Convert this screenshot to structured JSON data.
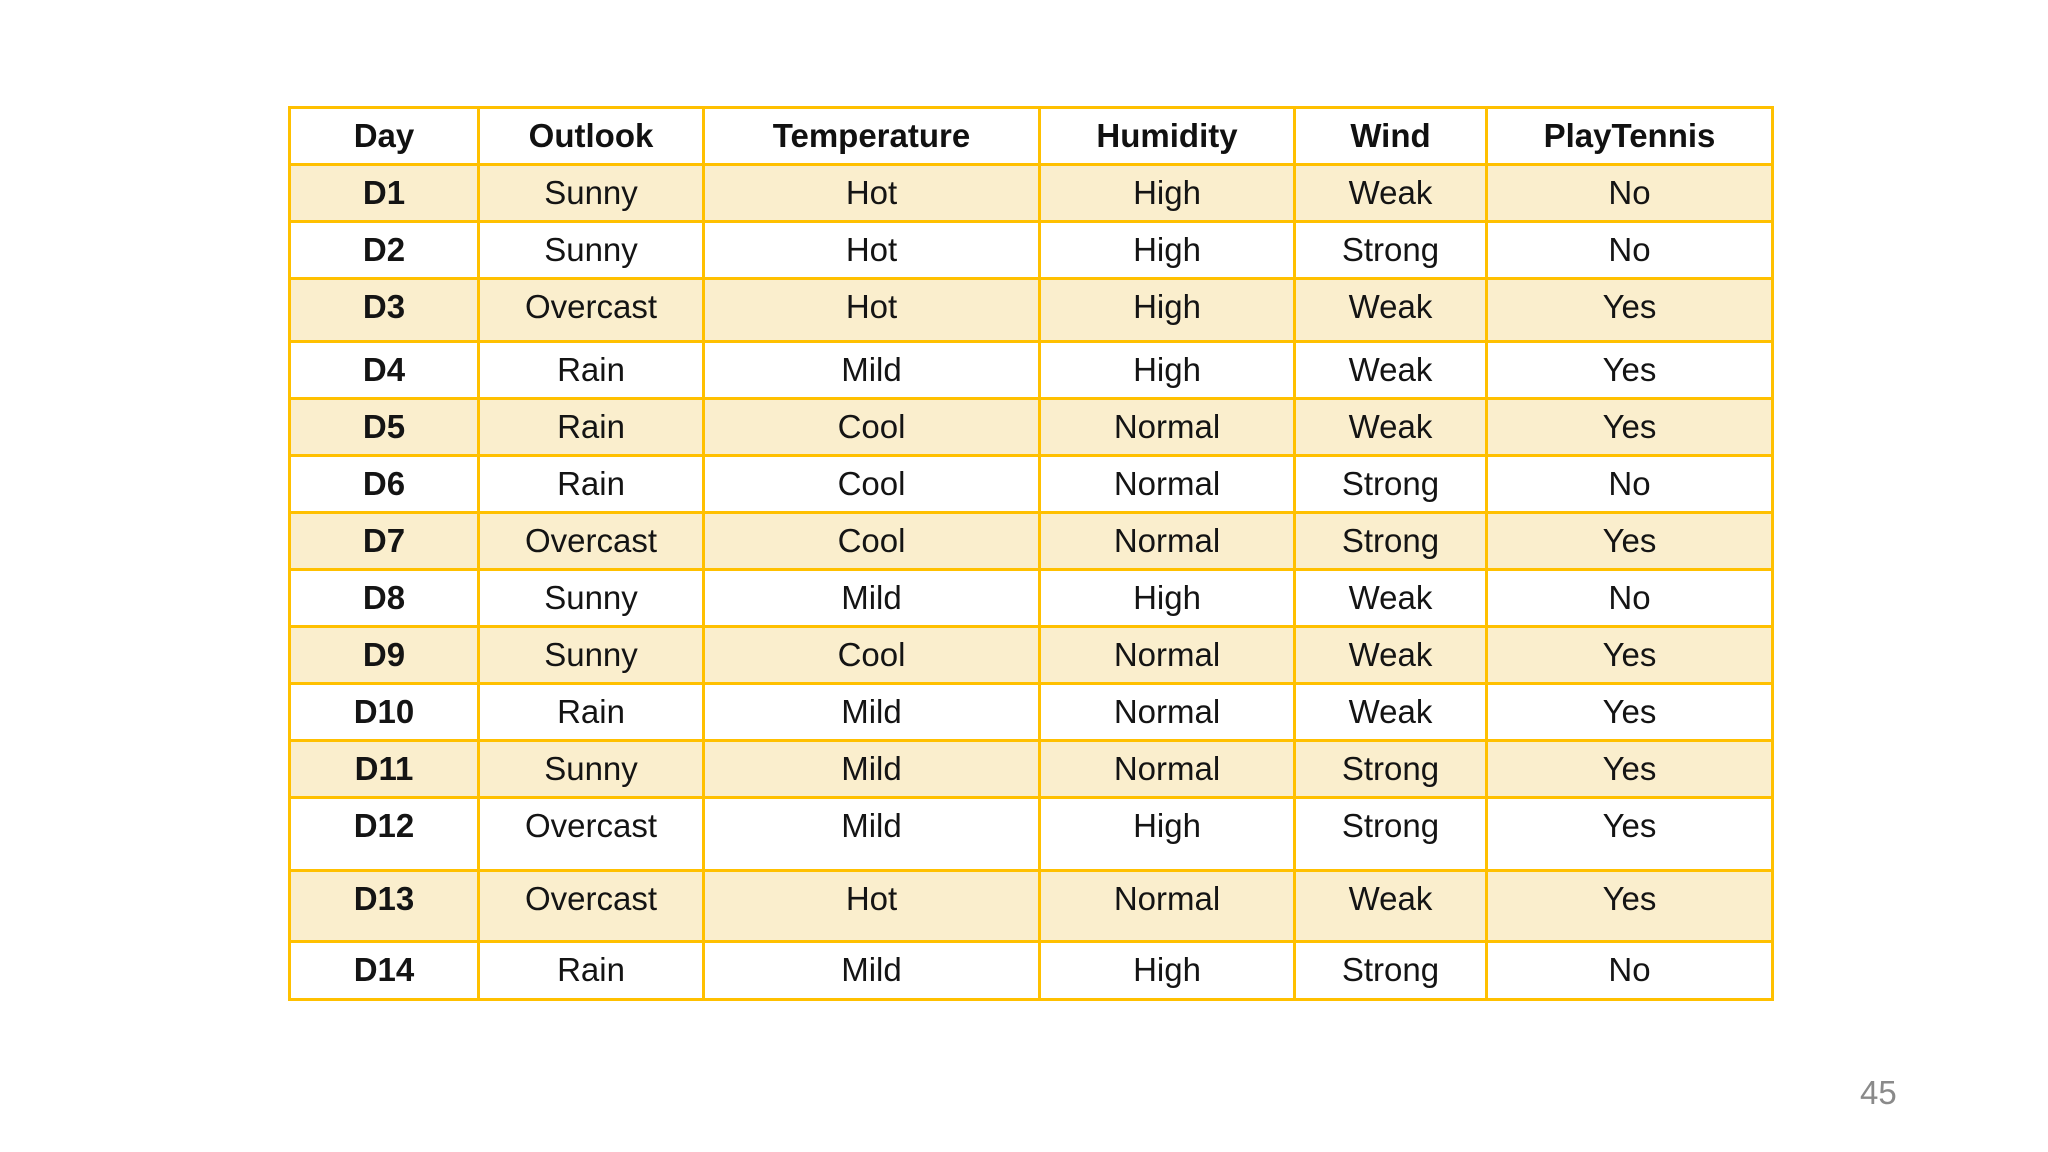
{
  "page": {
    "number": "45"
  },
  "table": {
    "columns": [
      "Day",
      "Outlook",
      "Temperature",
      "Humidity",
      "Wind",
      "PlayTennis"
    ],
    "rows": [
      [
        "D1",
        "Sunny",
        "Hot",
        "High",
        "Weak",
        "No"
      ],
      [
        "D2",
        "Sunny",
        "Hot",
        "High",
        "Strong",
        "No"
      ],
      [
        "D3",
        "Overcast",
        "Hot",
        "High",
        "Weak",
        "Yes"
      ],
      [
        "D4",
        "Rain",
        "Mild",
        "High",
        "Weak",
        "Yes"
      ],
      [
        "D5",
        "Rain",
        "Cool",
        "Normal",
        "Weak",
        "Yes"
      ],
      [
        "D6",
        "Rain",
        "Cool",
        "Normal",
        "Strong",
        "No"
      ],
      [
        "D7",
        "Overcast",
        "Cool",
        "Normal",
        "Strong",
        "Yes"
      ],
      [
        "D8",
        "Sunny",
        "Mild",
        "High",
        "Weak",
        "No"
      ],
      [
        "D9",
        "Sunny",
        "Cool",
        "Normal",
        "Weak",
        "Yes"
      ],
      [
        "D10",
        "Rain",
        "Mild",
        "Normal",
        "Weak",
        "Yes"
      ],
      [
        "D11",
        "Sunny",
        "Mild",
        "Normal",
        "Strong",
        "Yes"
      ],
      [
        "D12",
        "Overcast",
        "Mild",
        "High",
        "Strong",
        "Yes"
      ],
      [
        "D13",
        "Overcast",
        "Hot",
        "Normal",
        "Weak",
        "Yes"
      ],
      [
        "D14",
        "Rain",
        "Mild",
        "High",
        "Strong",
        "No"
      ]
    ]
  },
  "colors": {
    "table_border": "#FFC000",
    "banded_row_fill": "#FAEECD",
    "page_number_color": "#8A8A8A"
  }
}
